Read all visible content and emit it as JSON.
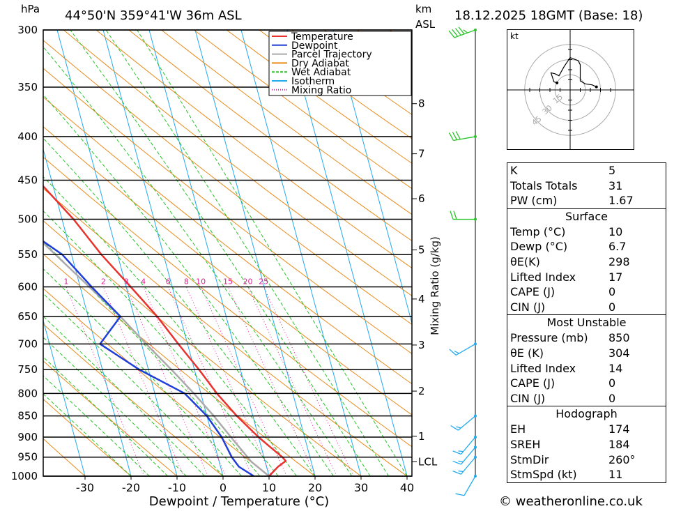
{
  "header": {
    "hpa_unit": "hPa",
    "km_unit": "km",
    "asl_unit": "ASL",
    "location": "44°50'N 359°41'W 36m ASL",
    "datetime": "18.12.2025 18GMT (Base: 18)"
  },
  "chart_data": {
    "type": "skew-t",
    "pressure_levels": [
      300,
      350,
      400,
      450,
      500,
      550,
      600,
      650,
      700,
      750,
      800,
      850,
      900,
      950,
      1000
    ],
    "temperature_ticks": [
      -30,
      -20,
      -10,
      0,
      10,
      20,
      30,
      40
    ],
    "xlabel": "Dewpoint / Temperature (°C)",
    "height_ticks_km": [
      {
        "km": "8",
        "p": 366
      },
      {
        "km": "7",
        "p": 419
      },
      {
        "km": "6",
        "p": 473
      },
      {
        "km": "5",
        "p": 543
      },
      {
        "km": "4",
        "p": 620
      },
      {
        "km": "3",
        "p": 702
      },
      {
        "km": "2",
        "p": 795
      },
      {
        "km": "1",
        "p": 898
      },
      {
        "km": "LCL",
        "p": 962
      }
    ],
    "mixing_ratio_label": "Mixing Ratio (g/kg)",
    "mixing_ratio_ticks": [
      "1",
      "2",
      "3",
      "4",
      "6",
      "8",
      "10",
      "15",
      "20",
      "25"
    ],
    "legend": {
      "position": "top-right",
      "entries": [
        {
          "name": "Temperature",
          "color": "#e8322e"
        },
        {
          "name": "Dewpoint",
          "color": "#1f3fd8"
        },
        {
          "name": "Parcel Trajectory",
          "color": "#aaaaaa"
        },
        {
          "name": "Dry Adiabat",
          "color": "#e88a1a"
        },
        {
          "name": "Wet Adiabat",
          "color": "#26c426"
        },
        {
          "name": "Isotherm",
          "color": "#22aaee"
        },
        {
          "name": "Mixing Ratio",
          "color": "#e0209a"
        }
      ]
    },
    "temperature_profile": [
      {
        "p": 1000,
        "t": 10
      },
      {
        "p": 975,
        "t": 12.5
      },
      {
        "p": 960,
        "t": 14.5
      },
      {
        "p": 950,
        "t": 14
      },
      {
        "p": 925,
        "t": 12
      },
      {
        "p": 900,
        "t": 10
      },
      {
        "p": 850,
        "t": 6.5
      },
      {
        "p": 800,
        "t": 3.5
      },
      {
        "p": 750,
        "t": 1
      },
      {
        "p": 700,
        "t": -2
      },
      {
        "p": 650,
        "t": -5
      },
      {
        "p": 600,
        "t": -9
      },
      {
        "p": 550,
        "t": -13.5
      },
      {
        "p": 500,
        "t": -17.5
      },
      {
        "p": 450,
        "t": -23
      },
      {
        "p": 400,
        "t": -33
      },
      {
        "p": 350,
        "t": -43
      },
      {
        "p": 300,
        "t": -53
      }
    ],
    "dewpoint_profile": [
      {
        "p": 1000,
        "t": 6.7
      },
      {
        "p": 975,
        "t": 4
      },
      {
        "p": 950,
        "t": 3
      },
      {
        "p": 925,
        "t": 2.5
      },
      {
        "p": 900,
        "t": 2
      },
      {
        "p": 850,
        "t": 0
      },
      {
        "p": 800,
        "t": -3.5
      },
      {
        "p": 750,
        "t": -12
      },
      {
        "p": 700,
        "t": -19
      },
      {
        "p": 650,
        "t": -13
      },
      {
        "p": 600,
        "t": -17.5
      },
      {
        "p": 550,
        "t": -22
      },
      {
        "p": 500,
        "t": -31
      },
      {
        "p": 450,
        "t": -41
      },
      {
        "p": 400,
        "t": -47
      },
      {
        "p": 350,
        "t": -56
      },
      {
        "p": 300,
        "t": -63
      }
    ],
    "parcel_profile": [
      {
        "p": 1000,
        "t": 10
      },
      {
        "p": 962,
        "t": 7
      },
      {
        "p": 900,
        "t": 4
      },
      {
        "p": 850,
        "t": 1.5
      },
      {
        "p": 800,
        "t": -1.5
      },
      {
        "p": 750,
        "t": -5
      },
      {
        "p": 700,
        "t": -9
      },
      {
        "p": 650,
        "t": -13
      },
      {
        "p": 600,
        "t": -18
      },
      {
        "p": 550,
        "t": -23.5
      },
      {
        "p": 500,
        "t": -29.5
      },
      {
        "p": 450,
        "t": -36
      },
      {
        "p": 400,
        "t": -44
      },
      {
        "p": 350,
        "t": -53
      },
      {
        "p": 300,
        "t": -63
      }
    ],
    "wind_barbs": [
      {
        "p": 300,
        "dir": 250,
        "kt": 45
      },
      {
        "p": 400,
        "dir": 260,
        "kt": 30
      },
      {
        "p": 500,
        "dir": 270,
        "kt": 20
      },
      {
        "p": 700,
        "dir": 240,
        "kt": 15
      },
      {
        "p": 850,
        "dir": 230,
        "kt": 15
      },
      {
        "p": 900,
        "dir": 220,
        "kt": 15
      },
      {
        "p": 925,
        "dir": 220,
        "kt": 15
      },
      {
        "p": 950,
        "dir": 220,
        "kt": 15
      },
      {
        "p": 1000,
        "dir": 210,
        "kt": 10
      }
    ]
  },
  "hodograph": {
    "unit": "kt",
    "rings": [
      {
        "kt": 15,
        "label": "15"
      },
      {
        "kt": 30,
        "label": "30"
      },
      {
        "kt": 45,
        "label": "45"
      }
    ],
    "trace": [
      [
        26,
        3
      ],
      [
        22,
        5
      ],
      [
        15,
        6
      ],
      [
        10,
        9
      ],
      [
        10,
        25
      ],
      [
        8,
        29
      ],
      [
        0,
        32
      ],
      [
        -6,
        23
      ],
      [
        -11,
        14
      ],
      [
        -15,
        16
      ],
      [
        -19,
        17
      ],
      [
        -16,
        8
      ],
      [
        -13,
        7
      ]
    ]
  },
  "indices": [
    {
      "label": "K",
      "value": "5"
    },
    {
      "label": "Totals Totals",
      "value": "31"
    },
    {
      "label": "PW (cm)",
      "value": "1.67"
    }
  ],
  "surface": {
    "title": "Surface",
    "rows": [
      {
        "label": "Temp (°C)",
        "value": "10"
      },
      {
        "label": "Dewp (°C)",
        "value": "6.7"
      },
      {
        "label": "θE(K)",
        "value": "298"
      },
      {
        "label": "Lifted Index",
        "value": "17"
      },
      {
        "label": "CAPE (J)",
        "value": "0"
      },
      {
        "label": "CIN (J)",
        "value": "0"
      }
    ]
  },
  "most_unstable": {
    "title": "Most Unstable",
    "rows": [
      {
        "label": "Pressure (mb)",
        "value": "850"
      },
      {
        "label": "θE (K)",
        "value": "304"
      },
      {
        "label": "Lifted Index",
        "value": "14"
      },
      {
        "label": "CAPE (J)",
        "value": "0"
      },
      {
        "label": "CIN (J)",
        "value": "0"
      }
    ]
  },
  "hodograph_stats": {
    "title": "Hodograph",
    "rows": [
      {
        "label": "EH",
        "value": "174"
      },
      {
        "label": "SREH",
        "value": "184"
      },
      {
        "label": "StmDir",
        "value": "260°"
      },
      {
        "label": "StmSpd (kt)",
        "value": "11"
      }
    ]
  },
  "footer": {
    "copyright": "© weatheronline.co.uk"
  }
}
